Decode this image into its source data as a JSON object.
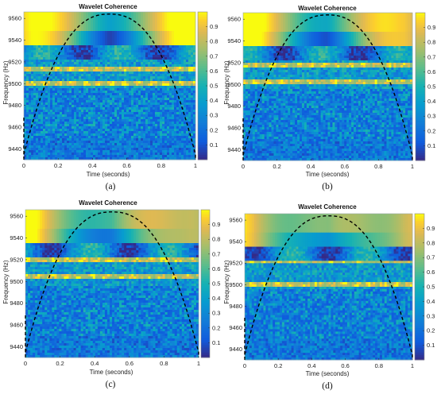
{
  "chart_data": [
    {
      "type": "heatmap",
      "panel": "(a)",
      "title": "Wavelet Coherence",
      "xlabel": "Time (seconds)",
      "ylabel": "Frequency (Hz)",
      "xlim": [
        0,
        1
      ],
      "ylim": [
        9430,
        9566
      ],
      "x_ticks": [
        "0",
        "0.2",
        "0.4",
        "0.6",
        "0.8",
        "1"
      ],
      "x_tick_values": [
        0,
        0.2,
        0.4,
        0.6,
        0.8,
        1
      ],
      "y_ticks": [
        "9440",
        "9460",
        "9480",
        "9500",
        "9520",
        "9540",
        "9560"
      ],
      "y_tick_values": [
        9440,
        9460,
        9480,
        9500,
        9520,
        9540,
        9560
      ],
      "colorbar_range": [
        0,
        1
      ],
      "colorbar_ticks": [
        "0.1",
        "0.2",
        "0.3",
        "0.4",
        "0.5",
        "0.6",
        "0.7",
        "0.8",
        "0.9"
      ],
      "colorbar_tick_values": [
        0.1,
        0.2,
        0.3,
        0.4,
        0.5,
        0.6,
        0.7,
        0.8,
        0.9
      ],
      "colormap": "parula",
      "cone_of_influence": "dashed black",
      "high_coherence_bands_hz": [
        9500,
        9513
      ]
    },
    {
      "type": "heatmap",
      "panel": "(b)",
      "title": "Wavelet Coherence",
      "xlabel": "Time (seconds)",
      "ylabel": "Frequency (Hz)",
      "xlim": [
        0,
        1
      ],
      "ylim": [
        9430,
        9566
      ],
      "x_ticks": [
        "0",
        "0.2",
        "0.4",
        "0.6",
        "0.8",
        "1"
      ],
      "x_tick_values": [
        0,
        0.2,
        0.4,
        0.6,
        0.8,
        1
      ],
      "y_ticks": [
        "9440",
        "9460",
        "9480",
        "9500",
        "9520",
        "9540",
        "9560"
      ],
      "y_tick_values": [
        9440,
        9460,
        9480,
        9500,
        9520,
        9540,
        9560
      ],
      "colorbar_range": [
        0,
        1
      ],
      "colorbar_ticks": [
        "0.1",
        "0.2",
        "0.3",
        "0.4",
        "0.5",
        "0.6",
        "0.7",
        "0.8",
        "0.9"
      ],
      "colorbar_tick_values": [
        0.1,
        0.2,
        0.3,
        0.4,
        0.5,
        0.6,
        0.7,
        0.8,
        0.9
      ],
      "colormap": "parula",
      "cone_of_influence": "dashed black",
      "high_coherence_bands_hz": [
        9502,
        9517
      ]
    },
    {
      "type": "heatmap",
      "panel": "(c)",
      "title": "Wavelet Coherence",
      "xlabel": "Time (seconds)",
      "ylabel": "Frequency (Hz)",
      "xlim": [
        0,
        1
      ],
      "ylim": [
        9430,
        9566
      ],
      "x_ticks": [
        "0",
        "0.2",
        "0.4",
        "0.6",
        "0.8",
        "1"
      ],
      "x_tick_values": [
        0,
        0.2,
        0.4,
        0.6,
        0.8,
        1
      ],
      "y_ticks": [
        "9440",
        "9460",
        "9480",
        "9500",
        "9520",
        "9540",
        "9560"
      ],
      "y_tick_values": [
        9440,
        9460,
        9480,
        9500,
        9520,
        9540,
        9560
      ],
      "colorbar_range": [
        0,
        1
      ],
      "colorbar_ticks": [
        "0.1",
        "0.2",
        "0.3",
        "0.4",
        "0.5",
        "0.6",
        "0.7",
        "0.8",
        "0.9"
      ],
      "colorbar_tick_values": [
        0.1,
        0.2,
        0.3,
        0.4,
        0.5,
        0.6,
        0.7,
        0.8,
        0.9
      ],
      "colormap": "parula",
      "cone_of_influence": "dashed black",
      "high_coherence_bands_hz": [
        9520,
        9505
      ]
    },
    {
      "type": "heatmap",
      "panel": "(d)",
      "title": "Wavelet Coherence",
      "xlabel": "Time (seconds)",
      "ylabel": "Frequency (Hz)",
      "xlim": [
        0,
        1
      ],
      "ylim": [
        9430,
        9566
      ],
      "x_ticks": [
        "0",
        "0.2",
        "0.4",
        "0.6",
        "0.8",
        "1"
      ],
      "x_tick_values": [
        0,
        0.2,
        0.4,
        0.6,
        0.8,
        1
      ],
      "y_ticks": [
        "9440",
        "9460",
        "9480",
        "9500",
        "9520",
        "9540",
        "9560"
      ],
      "y_tick_values": [
        9440,
        9460,
        9480,
        9500,
        9520,
        9540,
        9560
      ],
      "colorbar_range": [
        0,
        1
      ],
      "colorbar_ticks": [
        "0.1",
        "0.2",
        "0.3",
        "0.4",
        "0.5",
        "0.6",
        "0.7",
        "0.8",
        "0.9"
      ],
      "colorbar_tick_values": [
        0.1,
        0.2,
        0.3,
        0.4,
        0.5,
        0.6,
        0.7,
        0.8,
        0.9
      ],
      "colormap": "parula",
      "cone_of_influence": "dashed black",
      "high_coherence_bands_hz": [
        9522,
        9500
      ]
    }
  ],
  "colors": {
    "parula_low": "#352a87",
    "parula_mid_blue": "#1e7fd6",
    "parula_teal": "#1fb0a8",
    "parula_green": "#7fc45c",
    "parula_high": "#f9fb0e"
  }
}
